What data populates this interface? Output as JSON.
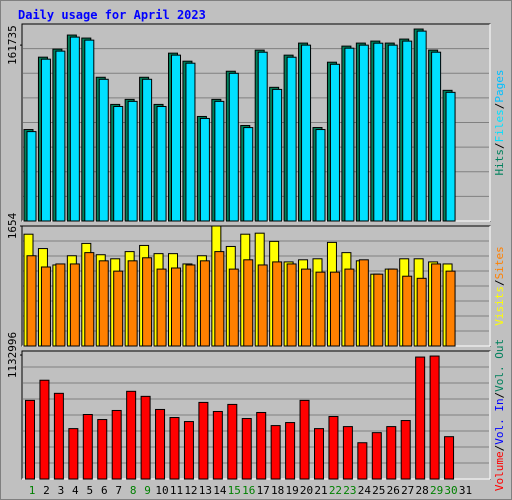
{
  "chart_data": {
    "type": "bar",
    "title": "Daily usage for April 2023",
    "categories": [
      "1",
      "2",
      "3",
      "4",
      "5",
      "6",
      "7",
      "8",
      "9",
      "10",
      "11",
      "12",
      "13",
      "14",
      "15",
      "16",
      "17",
      "18",
      "19",
      "20",
      "21",
      "22",
      "23",
      "24",
      "25",
      "26",
      "27",
      "28",
      "29",
      "30",
      "31"
    ],
    "category_color": "#000080",
    "highlight_color": "#008000",
    "highlighted": [
      0,
      7,
      8,
      14,
      15,
      21,
      22,
      28,
      29
    ],
    "legend_separator": "/",
    "grid": true,
    "panels": [
      {
        "ylim": [
          0,
          181143
        ],
        "yticks": [
          161735
        ],
        "series": [
          {
            "name": "Hits",
            "color": "#00805c",
            "values": [
              84100,
              150650,
              158040,
              170980,
              168210,
              132160,
              107210,
              111830,
              132160,
              107210,
              154340,
              146950,
              96120,
              111830,
              137710,
              87800,
              157110,
              122920,
              152500,
              163590,
              85950,
              146020,
              160810,
              163590,
              165430,
              163590,
              167280,
              176520,
              157110,
              120150,
              null
            ]
          },
          {
            "name": "Files",
            "color": "#00e0ff",
            "values": [
              82200,
              148800,
              156200,
              169100,
              166300,
              130300,
              105300,
              110000,
              130300,
              105300,
              152500,
              145100,
              94300,
              110000,
              135800,
              85900,
              155200,
              121000,
              150600,
              161700,
              84100,
              144100,
              158900,
              161700,
              163500,
              161700,
              165400,
              174600,
              155200,
              118300,
              null
            ]
          }
        ],
        "extra_legend": [
          {
            "name": "Pages",
            "color": "#00c0ff"
          }
        ]
      },
      {
        "ylim": [
          0,
          1654
        ],
        "yticks": [
          1654
        ],
        "series": [
          {
            "name": "Visits",
            "color": "#ffff00",
            "values": [
              1541,
              1343,
              1117,
              1244,
              1414,
              1258,
              1202,
              1301,
              1386,
              1273,
              1273,
              1131,
              1244,
              1654,
              1372,
              1541,
              1555,
              1442,
              1159,
              1188,
              1202,
              1428,
              1287,
              1174,
              990,
              1060,
              1202,
              1202,
              1159,
              1131,
              null
            ]
          },
          {
            "name": "Sites",
            "color": "#ff8000",
            "values": [
              1244,
              1089,
              1131,
              1131,
              1287,
              1174,
              1032,
              1174,
              1216,
              1060,
              1075,
              1117,
              1174,
              1301,
              1060,
              1188,
              1117,
              1159,
              1131,
              1060,
              1018,
              1018,
              1060,
              1188,
              990,
              1060,
              962,
              933,
              1131,
              1032,
              null
            ]
          }
        ],
        "extra_legend": []
      },
      {
        "ylim": [
          0,
          1169840
        ],
        "yticks": [
          1132996
        ],
        "series": [
          {
            "name": "Volume",
            "color": "#ff0000",
            "values": [
              718458,
              902678,
              782935,
              460550,
              589504,
              543449,
              626348,
              801357,
              755302,
              635559,
              561871,
              525027,
              700036,
              617137,
              681614,
              552660,
              607926,
              488183,
              515816,
              718458,
              460550,
              571082,
              478972,
              331596,
              423706,
              478972,
              534238,
              1114531,
              1123742,
              386862,
              null
            ]
          }
        ],
        "extra_legend": [
          {
            "name": "Vol. In",
            "color": "#0000ff"
          },
          {
            "name": "Vol. Out",
            "color": "#00805c"
          }
        ]
      }
    ]
  }
}
